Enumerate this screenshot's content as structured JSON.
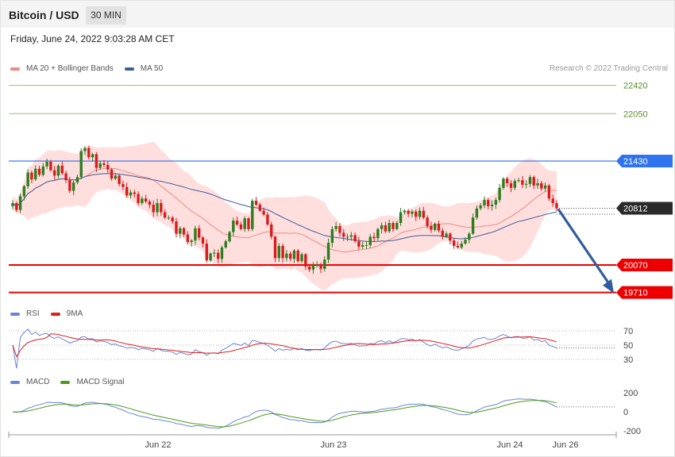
{
  "header": {
    "title": "Bitcoin / USD",
    "interval": "30 MIN"
  },
  "timestamp": "Friday, June 24, 2022 9:03:28 AM CET",
  "credit": "Research © 2022 Trading Central",
  "colors": {
    "up": "#2e7d1f",
    "down": "#d91c1c",
    "band": "#ffdede",
    "ma20": "#f08a80",
    "ma50": "#3c5e9a",
    "support": "#ee0000",
    "resistance_blue": "#3d7cf0",
    "resistance_green": "#9bc07a",
    "arrow": "#2f5c9c",
    "rsi": "#6a84d8",
    "rsi_ma": "#e01e1e",
    "macd": "#6a84d8",
    "macd_signal": "#4d9a1a"
  },
  "chart_data": [
    {
      "type": "candlestick",
      "legend": [
        {
          "label": "MA 20 + Bollinger Bands",
          "color": "#f08a80"
        },
        {
          "label": "MA 50",
          "color": "#3c5e9a"
        }
      ],
      "levels": [
        {
          "value": 22420,
          "label": "22420",
          "kind": "resistance"
        },
        {
          "value": 22050,
          "label": "22050",
          "kind": "resistance"
        },
        {
          "value": 21430,
          "label": "21430",
          "kind": "resistance-pivot"
        },
        {
          "value": 20812,
          "label": "20812",
          "kind": "last-price"
        },
        {
          "value": 20070,
          "label": "20070",
          "kind": "support"
        },
        {
          "value": 19710,
          "label": "19710",
          "kind": "support"
        }
      ],
      "x_ticks": [
        "Jun 22",
        "Jun 23",
        "Jun 24",
        "Jun 26"
      ],
      "ylim": [
        19600,
        22600
      ],
      "forecast": {
        "from": 20812,
        "to": 19710
      },
      "closes": [
        20880,
        20790,
        20970,
        21100,
        21280,
        21190,
        21330,
        21250,
        21360,
        21420,
        21310,
        21240,
        21370,
        21270,
        21180,
        21040,
        21150,
        21220,
        21560,
        21600,
        21480,
        21520,
        21340,
        21400,
        21380,
        21320,
        21200,
        21240,
        21130,
        21090,
        20980,
        21020,
        21000,
        20880,
        20940,
        20900,
        20860,
        20760,
        20880,
        20760,
        20690,
        20690,
        20640,
        20480,
        20550,
        20470,
        20370,
        20390,
        20550,
        20430,
        20350,
        20130,
        20220,
        20230,
        20150,
        20300,
        20380,
        20500,
        20650,
        20600,
        20540,
        20680,
        20540,
        20910,
        20860,
        20780,
        20730,
        20600,
        20440,
        20160,
        20320,
        20160,
        20220,
        20150,
        20260,
        20120,
        20210,
        20050,
        20010,
        20070,
        20080,
        20020,
        20140,
        20360,
        20540,
        20580,
        20490,
        20440,
        20440,
        20460,
        20380,
        20310,
        20330,
        20330,
        20440,
        20420,
        20540,
        20590,
        20510,
        20620,
        20540,
        20620,
        20760,
        20780,
        20740,
        20770,
        20700,
        20780,
        20690,
        20580,
        20530,
        20610,
        20520,
        20440,
        20480,
        20390,
        20320,
        20300,
        20350,
        20400,
        20480,
        20690,
        20810,
        20850,
        20920,
        20840,
        20860,
        20920,
        21080,
        21200,
        21140,
        21080,
        21170,
        21180,
        21120,
        21130,
        21220,
        21110,
        21140,
        21070,
        21110,
        20940,
        20880,
        20812
      ]
    },
    {
      "type": "line",
      "legend": [
        {
          "label": "RSI",
          "color": "#6a84d8"
        },
        {
          "label": "9MA",
          "color": "#e01e1e"
        }
      ],
      "y_ticks": [
        "70",
        "50",
        "30"
      ],
      "levels": [
        70,
        50,
        30
      ]
    },
    {
      "type": "line",
      "legend": [
        {
          "label": "MACD",
          "color": "#6a84d8"
        },
        {
          "label": "MACD Signal",
          "color": "#4d9a1a"
        }
      ],
      "y_ticks": [
        "200",
        "0",
        "-200"
      ]
    }
  ]
}
